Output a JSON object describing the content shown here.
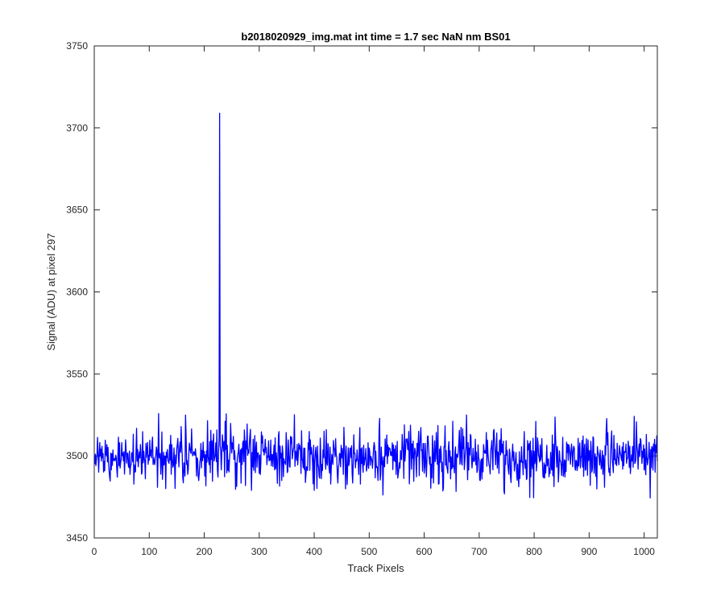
{
  "chart_data": {
    "type": "line",
    "title": "b2018020929_img.mat int time = 1.7 sec  NaN nm BS01",
    "xlabel": "Track Pixels",
    "ylabel": "Signal (ADU) at pixel 297",
    "xlim": [
      0,
      1024
    ],
    "ylim": [
      3450,
      3750
    ],
    "xticks": [
      0,
      100,
      200,
      300,
      400,
      500,
      600,
      700,
      800,
      900,
      1000
    ],
    "yticks": [
      3450,
      3500,
      3550,
      3600,
      3650,
      3700,
      3750
    ],
    "grid": false,
    "legend": "none",
    "box": true,
    "series": [
      {
        "color": "#0000ff",
        "x_start": 1,
        "x_step": 1,
        "count": 1024,
        "baseline": 3500,
        "noise_range": [
          3474,
          3526
        ],
        "peaks": [
          {
            "x": 228,
            "y": 3709
          }
        ]
      }
    ]
  }
}
